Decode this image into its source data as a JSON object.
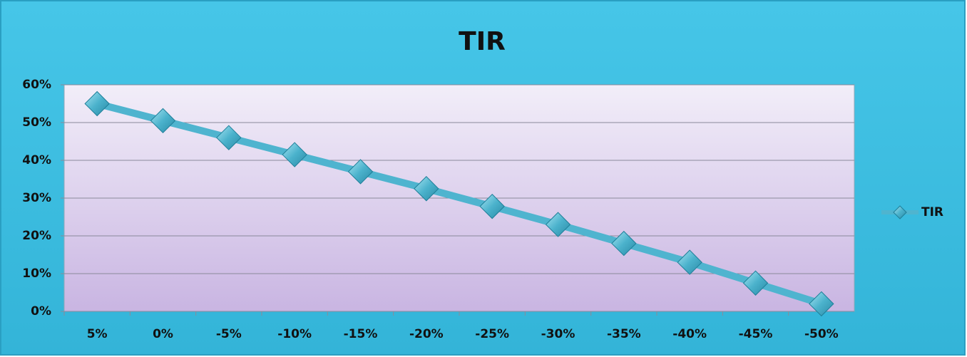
{
  "chart_data": {
    "type": "line",
    "title": "TIR",
    "categories": [
      "5%",
      "0%",
      "-5%",
      "-10%",
      "-15%",
      "-20%",
      "-25%",
      "-30%",
      "-35%",
      "-40%",
      "-45%",
      "-50%"
    ],
    "series": [
      {
        "name": "TIR",
        "color": "#4fb4cf",
        "values": [
          55,
          50.5,
          46,
          41.5,
          37,
          32.5,
          27.8,
          23,
          18,
          13,
          7.5,
          2
        ]
      }
    ],
    "ylim": [
      0,
      60
    ],
    "yticks": [
      {
        "value": 0,
        "label": "0%"
      },
      {
        "value": 10,
        "label": "10%"
      },
      {
        "value": 20,
        "label": "20%"
      },
      {
        "value": 30,
        "label": "30%"
      },
      {
        "value": 40,
        "label": "40%"
      },
      {
        "value": 50,
        "label": "50%"
      },
      {
        "value": 60,
        "label": "60%"
      }
    ],
    "grid": true,
    "legend": "right"
  }
}
